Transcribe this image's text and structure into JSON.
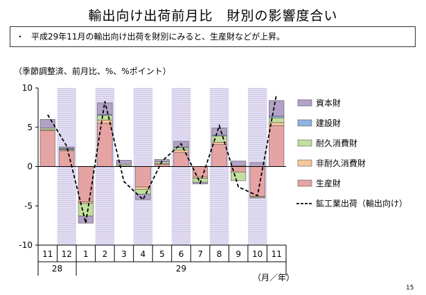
{
  "page": {
    "title": "輸出向け出荷前月比　財別の影響度合い",
    "note": "平成29年11月の輸出向け出荷を財別にみると、生産財などが上昇。",
    "note_bullet": "・",
    "unit_label": "（季節調整済、前月比、%、%ポイント）",
    "month_axis_label": "（月／年）",
    "page_number": "15"
  },
  "chart_data": {
    "type": "bar",
    "stacked": true,
    "categories": [
      "11",
      "12",
      "1",
      "2",
      "3",
      "4",
      "5",
      "6",
      "7",
      "8",
      "9",
      "10",
      "11"
    ],
    "year_labels": [
      {
        "label": "28",
        "from": 0,
        "to": 1
      },
      {
        "label": "29",
        "from": 2,
        "to": 12
      }
    ],
    "ylim": [
      -10,
      10
    ],
    "yticks": [
      10,
      5,
      0,
      -5,
      -10
    ],
    "shaded_category_indexes": [
      1,
      3,
      5,
      7,
      9,
      11
    ],
    "series": [
      {
        "name": "生産財",
        "color": "#e6a3a3",
        "values": [
          4.6,
          2.0,
          -4.5,
          5.5,
          0.0,
          -2.6,
          0.3,
          1.8,
          -1.3,
          2.8,
          -0.7,
          -3.8,
          5.2
        ]
      },
      {
        "name": "非耐久消費財",
        "color": "#f7c79b",
        "values": [
          0.1,
          0.1,
          -0.2,
          0.4,
          0.1,
          -0.3,
          0.1,
          0.3,
          -0.2,
          0.3,
          0.1,
          -0.1,
          0.4
        ]
      },
      {
        "name": "耐久消費財",
        "color": "#c3df9f",
        "values": [
          0.2,
          0.1,
          -1.6,
          0.6,
          0.2,
          -0.6,
          0.2,
          0.3,
          -0.5,
          0.8,
          -1.1,
          -0.1,
          0.6
        ]
      },
      {
        "name": "建設財",
        "color": "#8db4e2",
        "values": [
          0.0,
          0.1,
          0.0,
          0.1,
          0.0,
          0.0,
          0.0,
          0.1,
          0.0,
          0.1,
          0.0,
          0.0,
          0.2
        ]
      },
      {
        "name": "資本財",
        "color": "#b3a2c7",
        "values": [
          1.1,
          0.2,
          -0.9,
          1.5,
          0.5,
          -0.7,
          0.3,
          0.7,
          -0.2,
          0.9,
          0.6,
          0.5,
          2.0
        ]
      }
    ],
    "line": {
      "name": "鉱工業出荷（輸出向け）",
      "style": "dashed",
      "color": "#000000",
      "values": [
        6.6,
        2.6,
        -7.2,
        8.3,
        -1.9,
        -4.2,
        0.7,
        2.9,
        -2.1,
        5.2,
        -2.6,
        -3.7,
        9.2
      ]
    },
    "legend_position": "right",
    "legend_order": [
      "資本財",
      "建設財",
      "耐久消費財",
      "非耐久消費財",
      "生産財",
      "鉱工業出荷（輸出向け）"
    ]
  }
}
